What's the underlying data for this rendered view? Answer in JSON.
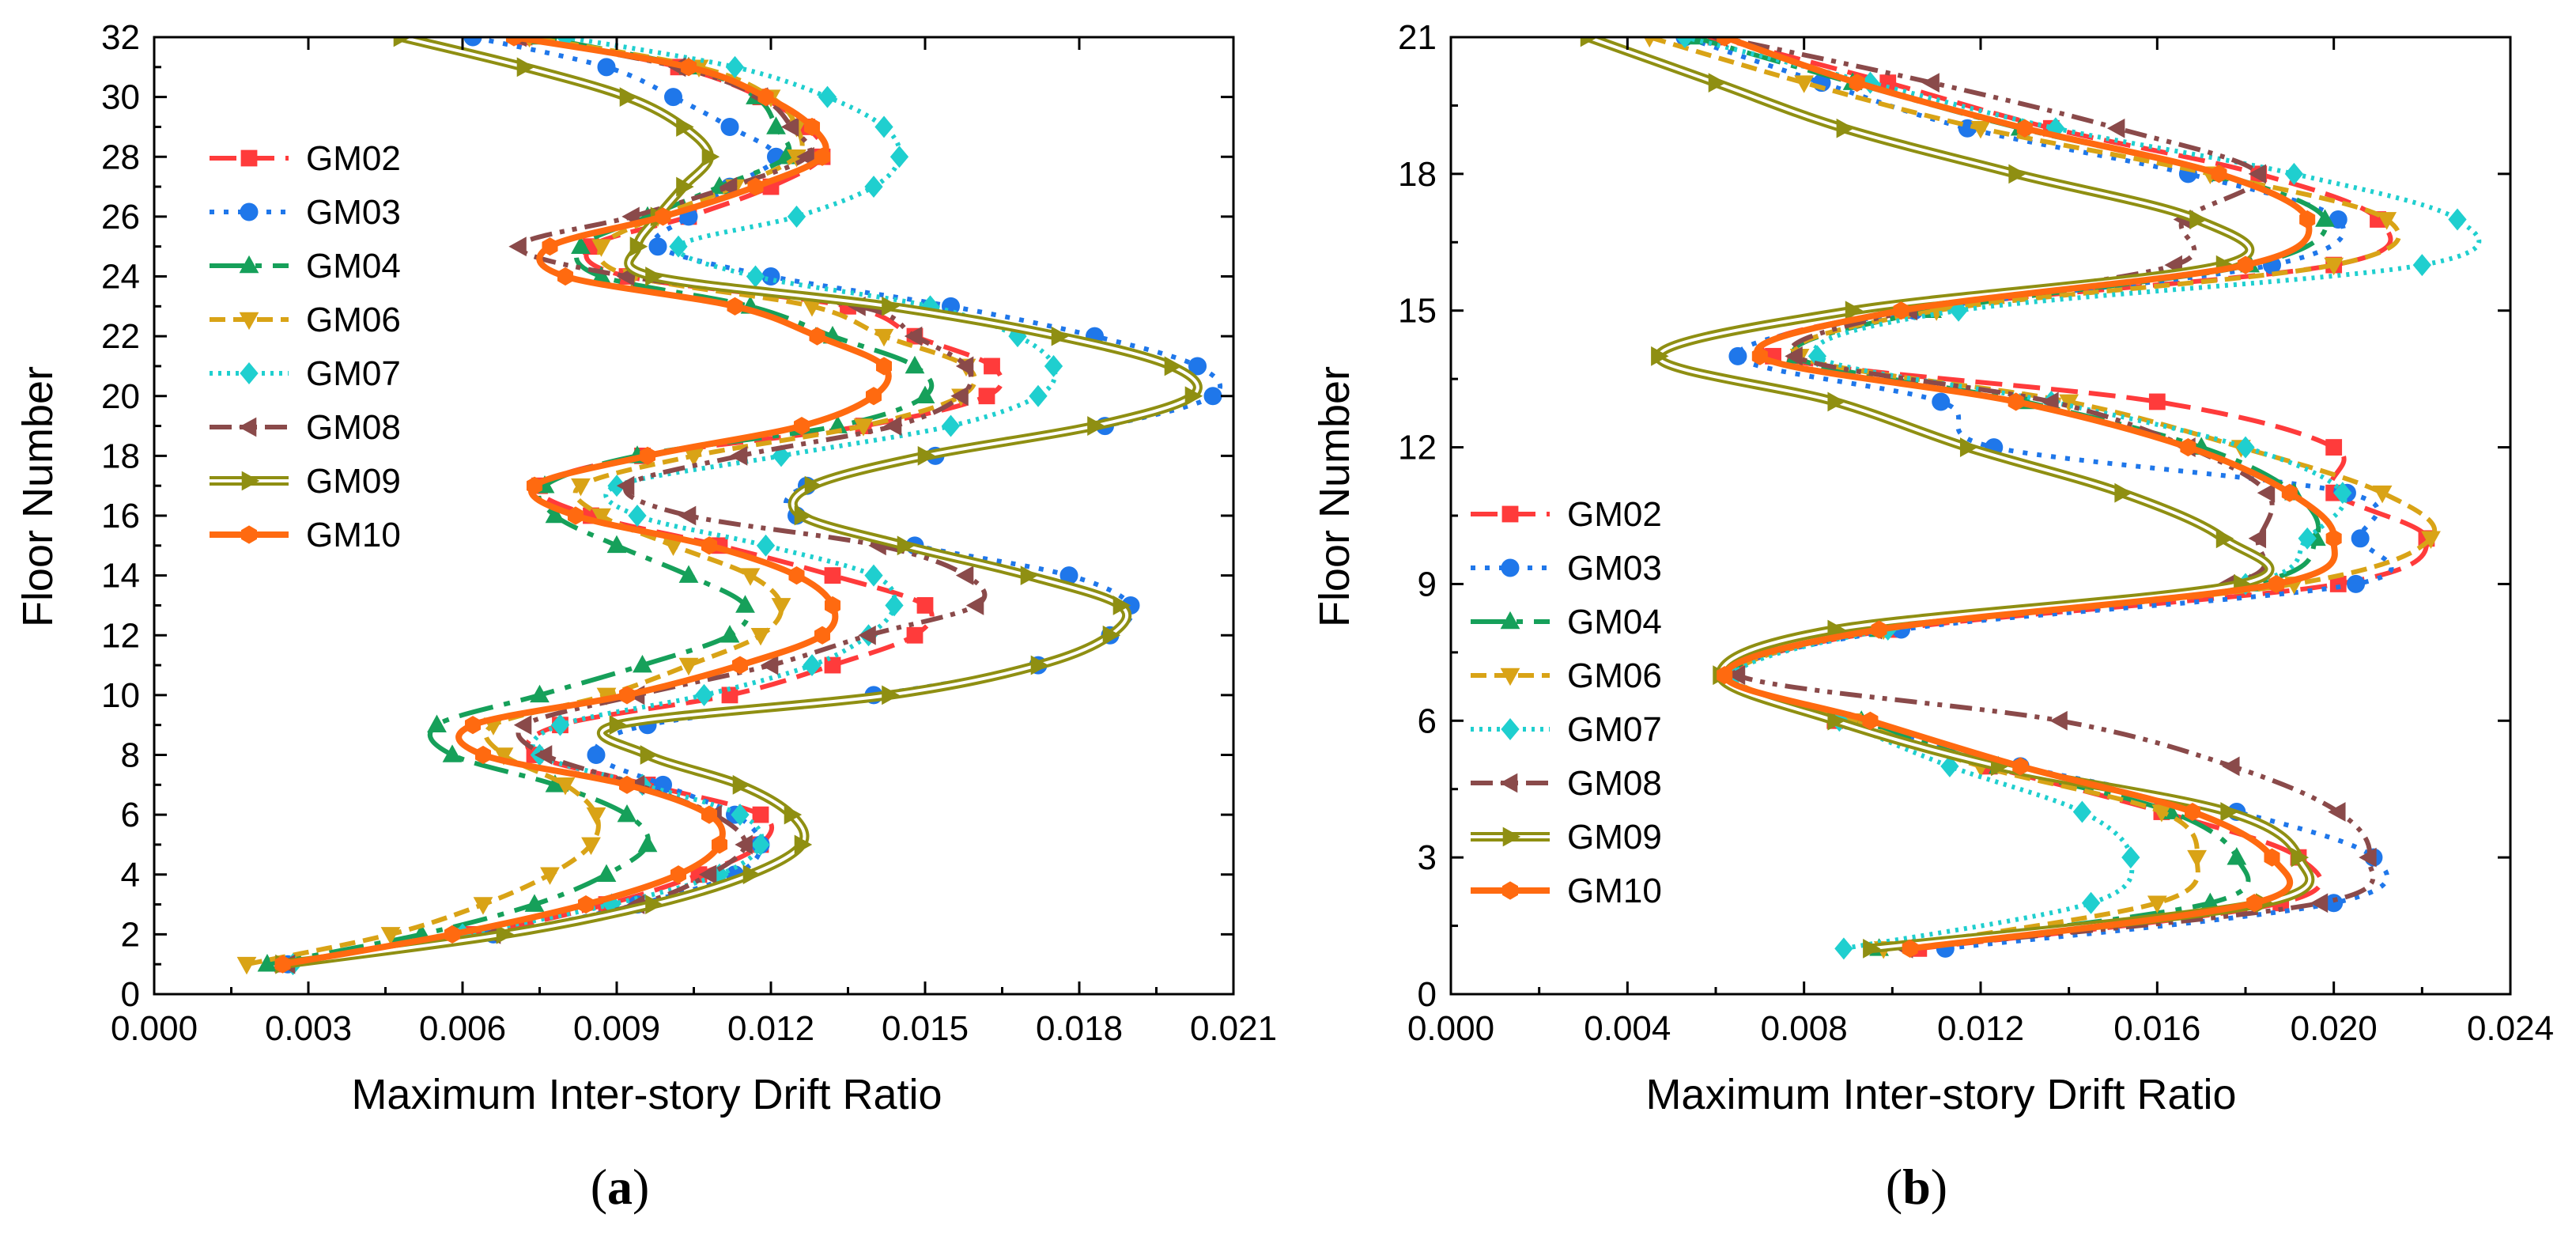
{
  "series_styles": [
    {
      "name": "GM02",
      "color": "#ff3b3b",
      "marker": "square",
      "dash": "34,14"
    },
    {
      "name": "GM03",
      "color": "#1f77ea",
      "marker": "circle",
      "dash": "6,12"
    },
    {
      "name": "GM04",
      "color": "#16a05a",
      "marker": "triangle-up",
      "dash": "44,14,8,14"
    },
    {
      "name": "GM06",
      "color": "#d9a316",
      "marker": "triangle-down",
      "dash": "20,10"
    },
    {
      "name": "GM07",
      "color": "#1fcfcf",
      "marker": "diamond",
      "dash": "4,7"
    },
    {
      "name": "GM08",
      "color": "#8a4a4a",
      "marker": "triangle-left",
      "dash": "28,10,6,10,6,10"
    },
    {
      "name": "GM09",
      "color": "#8f8f12",
      "marker": "triangle-right",
      "dash": "none",
      "double": true
    },
    {
      "name": "GM10",
      "color": "#ff6a10",
      "marker": "hexagon",
      "dash": "none"
    }
  ],
  "chart_data": [
    {
      "type": "line",
      "panel": "(a)",
      "panel_letter": "a",
      "xlabel": "Maximum Inter-story Drift Ratio",
      "ylabel": "Floor Number",
      "xlim": [
        0,
        0.021
      ],
      "ylim": [
        0,
        32
      ],
      "xticks": [
        "0.000",
        "0.003",
        "0.006",
        "0.009",
        "0.012",
        "0.015",
        "0.018",
        "0.021"
      ],
      "yticks": [
        "0",
        "2",
        "4",
        "6",
        "8",
        "10",
        "12",
        "14",
        "16",
        "18",
        "20",
        "22",
        "24",
        "26",
        "28",
        "30",
        "32"
      ],
      "legend": [
        "GM02",
        "GM03",
        "GM04",
        "GM06",
        "GM07",
        "GM08",
        "GM09",
        "GM10"
      ],
      "legend_position": "upper-left",
      "floors": [
        1,
        2,
        3,
        4,
        5,
        6,
        7,
        8,
        9,
        10,
        11,
        12,
        13,
        14,
        15,
        16,
        17,
        18,
        19,
        20,
        21,
        22,
        23,
        24,
        25,
        26,
        27,
        28,
        29,
        30,
        31,
        32
      ],
      "series": [
        {
          "name": "GM02",
          "values": [
            0.0025,
            0.0062,
            0.0088,
            0.0106,
            0.0118,
            0.0118,
            0.0096,
            0.0074,
            0.0079,
            0.0112,
            0.0132,
            0.0148,
            0.015,
            0.0132,
            0.011,
            0.0085,
            0.0075,
            0.0095,
            0.0138,
            0.0162,
            0.0163,
            0.0148,
            0.0135,
            0.0092,
            0.0085,
            0.0104,
            0.012,
            0.013,
            0.0127,
            0.0118,
            0.0102,
            0.0072
          ]
        },
        {
          "name": "GM03",
          "values": [
            0.0026,
            0.0066,
            0.0094,
            0.0113,
            0.0118,
            0.0113,
            0.0099,
            0.0086,
            0.0096,
            0.014,
            0.0172,
            0.0186,
            0.019,
            0.0178,
            0.0148,
            0.0125,
            0.0127,
            0.0152,
            0.0185,
            0.0206,
            0.0203,
            0.0183,
            0.0155,
            0.012,
            0.0098,
            0.0104,
            0.0112,
            0.0121,
            0.0112,
            0.0101,
            0.0088,
            0.0062
          ]
        },
        {
          "name": "GM04",
          "values": [
            0.0022,
            0.0052,
            0.0074,
            0.0088,
            0.0096,
            0.0092,
            0.0078,
            0.0058,
            0.0055,
            0.0075,
            0.0095,
            0.0112,
            0.0115,
            0.0104,
            0.009,
            0.0078,
            0.0076,
            0.0094,
            0.0133,
            0.015,
            0.0148,
            0.0132,
            0.0116,
            0.0087,
            0.0083,
            0.0096,
            0.011,
            0.0123,
            0.0121,
            0.0117,
            0.0104,
            0.0075
          ]
        },
        {
          "name": "GM06",
          "values": [
            0.0018,
            0.0046,
            0.0064,
            0.0077,
            0.0085,
            0.0086,
            0.008,
            0.0068,
            0.0066,
            0.0088,
            0.0104,
            0.0118,
            0.0122,
            0.0116,
            0.0101,
            0.0087,
            0.0083,
            0.0105,
            0.0138,
            0.0157,
            0.0158,
            0.0142,
            0.0128,
            0.0093,
            0.0087,
            0.0098,
            0.0113,
            0.0125,
            0.0125,
            0.012,
            0.0106,
            0.0073
          ]
        },
        {
          "name": "GM07",
          "values": [
            0.0027,
            0.006,
            0.0089,
            0.011,
            0.0118,
            0.0114,
            0.0095,
            0.0075,
            0.0079,
            0.0107,
            0.0128,
            0.0139,
            0.0144,
            0.014,
            0.0119,
            0.0094,
            0.009,
            0.0122,
            0.0155,
            0.0172,
            0.0175,
            0.0168,
            0.0151,
            0.0117,
            0.0102,
            0.0125,
            0.014,
            0.0145,
            0.0142,
            0.0131,
            0.0113,
            0.008
          ]
        },
        {
          "name": "GM08",
          "values": [
            0.0026,
            0.0066,
            0.0094,
            0.0108,
            0.0115,
            0.0109,
            0.0094,
            0.0076,
            0.0072,
            0.0094,
            0.012,
            0.0139,
            0.016,
            0.0158,
            0.0141,
            0.0104,
            0.0092,
            0.0114,
            0.0144,
            0.0157,
            0.0158,
            0.0148,
            0.0137,
            0.0092,
            0.0071,
            0.0093,
            0.0112,
            0.0127,
            0.0124,
            0.0118,
            0.0102,
            0.0071
          ]
        },
        {
          "name": "GM09",
          "values": [
            0.0025,
            0.0068,
            0.0097,
            0.0116,
            0.0126,
            0.0124,
            0.0114,
            0.0096,
            0.009,
            0.0143,
            0.0172,
            0.0186,
            0.0188,
            0.017,
            0.0146,
            0.0126,
            0.0128,
            0.015,
            0.0183,
            0.0202,
            0.0198,
            0.0176,
            0.0143,
            0.0097,
            0.0094,
            0.0098,
            0.0103,
            0.0108,
            0.0103,
            0.0092,
            0.0072,
            0.0048
          ]
        },
        {
          "name": "GM10",
          "values": [
            0.0025,
            0.0058,
            0.0084,
            0.0102,
            0.011,
            0.0108,
            0.0092,
            0.0064,
            0.0062,
            0.0092,
            0.0114,
            0.013,
            0.0132,
            0.0125,
            0.0108,
            0.0082,
            0.0074,
            0.0096,
            0.0126,
            0.014,
            0.0142,
            0.0129,
            0.0113,
            0.008,
            0.0077,
            0.0099,
            0.0117,
            0.013,
            0.0128,
            0.0119,
            0.0104,
            0.007
          ]
        }
      ]
    },
    {
      "type": "line",
      "panel": "(b)",
      "panel_letter": "b",
      "xlabel": "Maximum Inter-story Drift Ratio",
      "ylabel": "Floor Number",
      "xlim": [
        0,
        0.024
      ],
      "ylim": [
        0,
        21
      ],
      "xticks": [
        "0.000",
        "0.004",
        "0.008",
        "0.012",
        "0.016",
        "0.020",
        "0.024"
      ],
      "yticks": [
        "0",
        "3",
        "6",
        "9",
        "12",
        "15",
        "18",
        "21"
      ],
      "legend": [
        "GM02",
        "GM03",
        "GM04",
        "GM06",
        "GM07",
        "GM08",
        "GM09",
        "GM10"
      ],
      "legend_position": "middle-left",
      "floors": [
        1,
        2,
        3,
        4,
        5,
        6,
        7,
        8,
        9,
        10,
        11,
        12,
        13,
        14,
        15,
        16,
        17,
        18,
        19,
        20,
        21
      ],
      "series": [
        {
          "name": "GM02",
          "values": [
            0.0106,
            0.0188,
            0.0192,
            0.0161,
            0.0122,
            0.0087,
            0.0063,
            0.01,
            0.0201,
            0.0221,
            0.02,
            0.02,
            0.016,
            0.0073,
            0.0103,
            0.02,
            0.021,
            0.0183,
            0.0136,
            0.0099,
            0.006
          ]
        },
        {
          "name": "GM03",
          "values": [
            0.0112,
            0.02,
            0.0209,
            0.0178,
            0.0129,
            0.009,
            0.0062,
            0.0102,
            0.0205,
            0.0206,
            0.0203,
            0.0123,
            0.0111,
            0.0065,
            0.0105,
            0.0186,
            0.0201,
            0.0167,
            0.0117,
            0.0084,
            0.0053
          ]
        },
        {
          "name": "GM04",
          "values": [
            0.0097,
            0.0172,
            0.0178,
            0.0163,
            0.0124,
            0.0093,
            0.0063,
            0.0097,
            0.0181,
            0.0196,
            0.0191,
            0.017,
            0.013,
            0.0078,
            0.0109,
            0.0181,
            0.0198,
            0.0174,
            0.0129,
            0.0091,
            0.0055
          ]
        },
        {
          "name": "GM06",
          "values": [
            0.0098,
            0.016,
            0.0169,
            0.0161,
            0.012,
            0.0091,
            0.0064,
            0.0098,
            0.0191,
            0.0222,
            0.0211,
            0.0179,
            0.014,
            0.0079,
            0.011,
            0.02,
            0.0212,
            0.0172,
            0.012,
            0.008,
            0.0045
          ]
        },
        {
          "name": "GM07",
          "values": [
            0.0089,
            0.0145,
            0.0154,
            0.0143,
            0.0113,
            0.0088,
            0.0064,
            0.0099,
            0.018,
            0.0194,
            0.0202,
            0.018,
            0.0136,
            0.0083,
            0.0115,
            0.022,
            0.0228,
            0.0191,
            0.0137,
            0.0095,
            0.0053
          ]
        },
        {
          "name": "GM08",
          "values": [
            0.0103,
            0.0197,
            0.0208,
            0.0201,
            0.0177,
            0.0138,
            0.0065,
            0.0096,
            0.0176,
            0.0183,
            0.0185,
            0.0167,
            0.0136,
            0.0078,
            0.0104,
            0.0164,
            0.0166,
            0.0183,
            0.0151,
            0.0109,
            0.0061
          ]
        },
        {
          "name": "GM09",
          "values": [
            0.0095,
            0.0184,
            0.0192,
            0.0176,
            0.0124,
            0.0087,
            0.0061,
            0.0087,
            0.0179,
            0.0175,
            0.0152,
            0.0117,
            0.0087,
            0.0047,
            0.0091,
            0.0175,
            0.0169,
            0.0128,
            0.0089,
            0.006,
            0.0031
          ]
        },
        {
          "name": "GM10",
          "values": [
            0.0104,
            0.0182,
            0.0186,
            0.0168,
            0.0129,
            0.0095,
            0.0062,
            0.0097,
            0.0187,
            0.02,
            0.019,
            0.0167,
            0.0128,
            0.007,
            0.0102,
            0.018,
            0.0194,
            0.0174,
            0.013,
            0.0092,
            0.0062
          ]
        }
      ]
    }
  ]
}
